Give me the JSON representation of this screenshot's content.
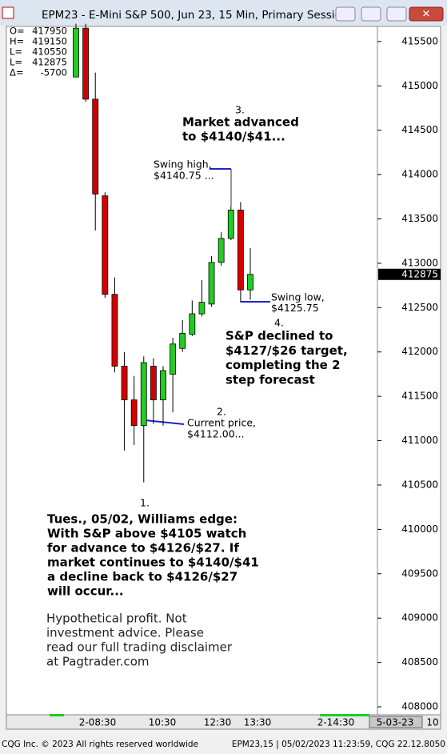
{
  "window_title": "EPM23 - E-Mini S&P 500, Jun 23, 15 Min, Primary Sessio",
  "status_left": "CQG Inc. © 2023 All rights reserved worldwide",
  "status_right": "EPM23,15 | 05/02/2023 11:23:59, CQG 22.12.8050",
  "info_box": [
    {
      "label": "O=",
      "value": 417950
    },
    {
      "label": "H=",
      "value": 419150
    },
    {
      "label": "L=",
      "value": 410550
    },
    {
      "label": "L=",
      "value": 412875
    },
    {
      "label": "Δ=",
      "value": -5700
    }
  ],
  "chart_data": {
    "type": "candlestick",
    "open": [
      415100,
      415650,
      414850,
      413760,
      412650,
      411840,
      411460,
      411170,
      411840,
      411460,
      411750,
      412040,
      412200,
      412430,
      412540,
      413010,
      413280,
      413600,
      412700
    ],
    "high": [
      415700,
      415700,
      415150,
      413800,
      412840,
      412000,
      411730,
      411950,
      411930,
      411840,
      412160,
      412360,
      412580,
      412810,
      413080,
      413350,
      413640,
      413690,
      413170
    ],
    "low": [
      415100,
      414820,
      413370,
      412610,
      411770,
      410890,
      410950,
      410530,
      411190,
      411170,
      411320,
      412000,
      412180,
      412400,
      412510,
      412970,
      413260,
      412560,
      412590
    ],
    "close": [
      415650,
      414850,
      413780,
      412650,
      411840,
      411460,
      411170,
      411880,
      411460,
      411790,
      412090,
      412210,
      412430,
      412560,
      413010,
      413280,
      413600,
      412700,
      412875
    ],
    "up_color": "#22cc22",
    "down_color": "#d40000",
    "last": 412875,
    "ylim": [
      407910,
      415670
    ],
    "yticks": [
      408000,
      408500,
      409000,
      409500,
      410000,
      410500,
      411000,
      411500,
      412000,
      412500,
      413000,
      413500,
      414000,
      414500,
      415000,
      415500
    ],
    "x_labels": [
      "2-08:30",
      "10:30",
      "12:30",
      "13:30",
      "2-14:30",
      "5-03-23",
      "10"
    ],
    "annotations": {
      "step3_num": "3.",
      "step3": [
        "Market advanced",
        "to $4140/$41..."
      ],
      "swing_high": [
        "Swing high,",
        "$4140.75 ..."
      ],
      "step2_num": "2.",
      "current": [
        "Current price,",
        "$4112.00..."
      ],
      "step4_num": "4.",
      "swing_low": [
        "Swing low,",
        "$4125.75"
      ],
      "step4": [
        "S&P declined to",
        "$4127/$26 target,",
        "completing the 2",
        "step forecast"
      ],
      "step1_num": "1.",
      "step1": [
        "Tues., 05/02, Williams edge:",
        "With S&P above $4105 watch",
        "for advance to $4126/$27. If",
        "market continues to $4140/$41",
        "a decline back to $4126/$27",
        "will occur..."
      ],
      "disclaimer": [
        "Hypothetical profit. Not",
        "investment advice. Please",
        "read our full trading disclaimer",
        "at Pagtrader.com"
      ]
    }
  }
}
